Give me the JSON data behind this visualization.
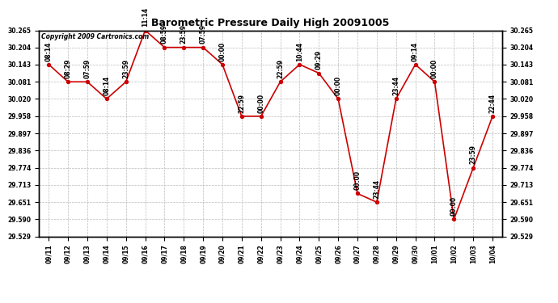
{
  "title": "Barometric Pressure Daily High 20091005",
  "copyright": "Copyright 2009 Cartronics.com",
  "x_labels": [
    "09/11",
    "09/12",
    "09/13",
    "09/14",
    "09/15",
    "09/16",
    "09/17",
    "09/18",
    "09/19",
    "09/20",
    "09/21",
    "09/22",
    "09/23",
    "09/24",
    "09/25",
    "09/26",
    "09/27",
    "09/28",
    "09/29",
    "09/30",
    "10/01",
    "10/02",
    "10/03",
    "10/04"
  ],
  "y_values": [
    30.143,
    30.081,
    30.081,
    30.02,
    30.081,
    30.265,
    30.204,
    30.204,
    30.204,
    30.143,
    29.958,
    29.958,
    30.081,
    30.143,
    30.112,
    30.02,
    29.682,
    29.651,
    30.02,
    30.143,
    30.081,
    29.59,
    29.774,
    29.958
  ],
  "time_labels": [
    "08:14",
    "08:29",
    "07:59",
    "08:14",
    "23:59",
    "11:14",
    "08:59",
    "23:59",
    "07:59",
    "00:00",
    "22:59",
    "00:00",
    "22:59",
    "10:44",
    "09:29",
    "00:00",
    "00:00",
    "23:44",
    "23:44",
    "09:14",
    "00:00",
    "00:00",
    "23:59",
    "22:44"
  ],
  "y_ticks": [
    29.529,
    29.59,
    29.651,
    29.713,
    29.774,
    29.836,
    29.897,
    29.958,
    30.02,
    30.081,
    30.143,
    30.204,
    30.265
  ],
  "ylim": [
    29.529,
    30.265
  ],
  "line_color": "#cc0000",
  "marker_color": "#cc0000",
  "bg_color": "#ffffff",
  "grid_color": "#bbbbbb",
  "title_fontsize": 9,
  "label_fontsize": 5.5,
  "tick_fontsize": 5.5,
  "copyright_fontsize": 5.5
}
